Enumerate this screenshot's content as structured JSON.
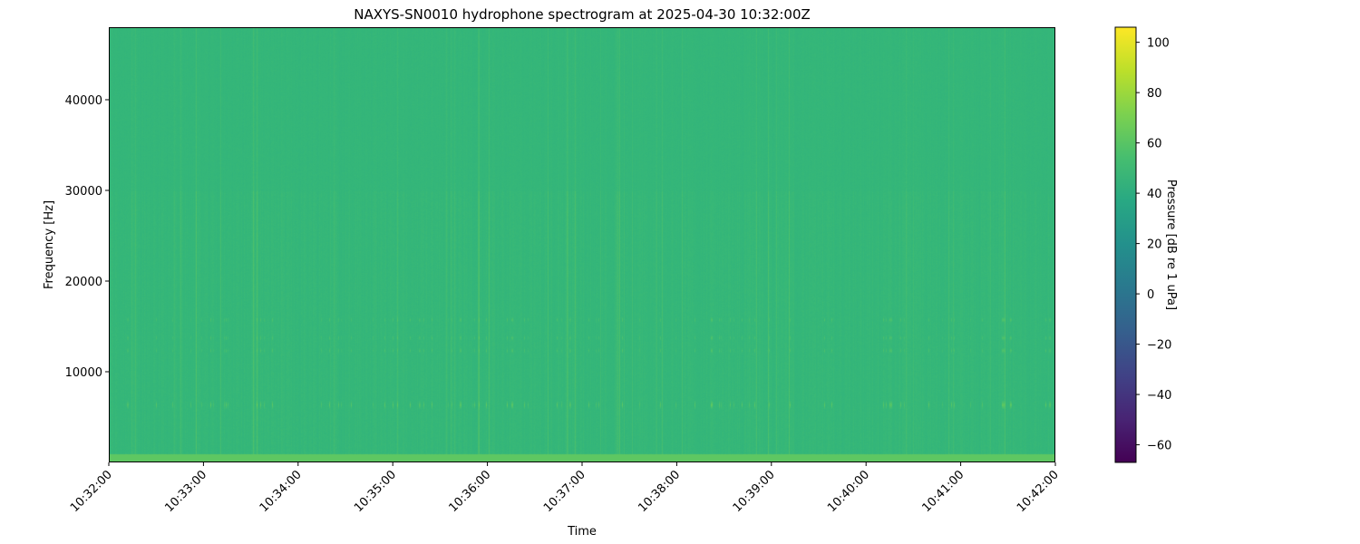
{
  "chart_data": {
    "type": "heatmap",
    "title": "NAXYS-SN0010 hydrophone spectrogram at 2025-04-30 10:32:00Z",
    "xlabel": "Time",
    "ylabel": "Frequency [Hz]",
    "x_ticks": [
      "10:32:00",
      "10:33:00",
      "10:34:00",
      "10:35:00",
      "10:36:00",
      "10:37:00",
      "10:38:00",
      "10:39:00",
      "10:40:00",
      "10:41:00",
      "10:42:00"
    ],
    "xlim": [
      "10:32:00",
      "10:42:00"
    ],
    "y_ticks": [
      10000,
      20000,
      30000,
      40000
    ],
    "ylim": [
      0,
      48000
    ],
    "colormap": "viridis",
    "colorbar": {
      "label": "Pressure [dB re 1 uPa]",
      "ticks": [
        -60,
        -40,
        -20,
        0,
        20,
        40,
        60,
        80,
        100
      ],
      "range": [
        -67,
        106
      ]
    },
    "background_level_db": 47,
    "tonal_bands_hz": [
      6400,
      12400,
      13800,
      15800
    ],
    "low_frequency_level_db": 62
  }
}
